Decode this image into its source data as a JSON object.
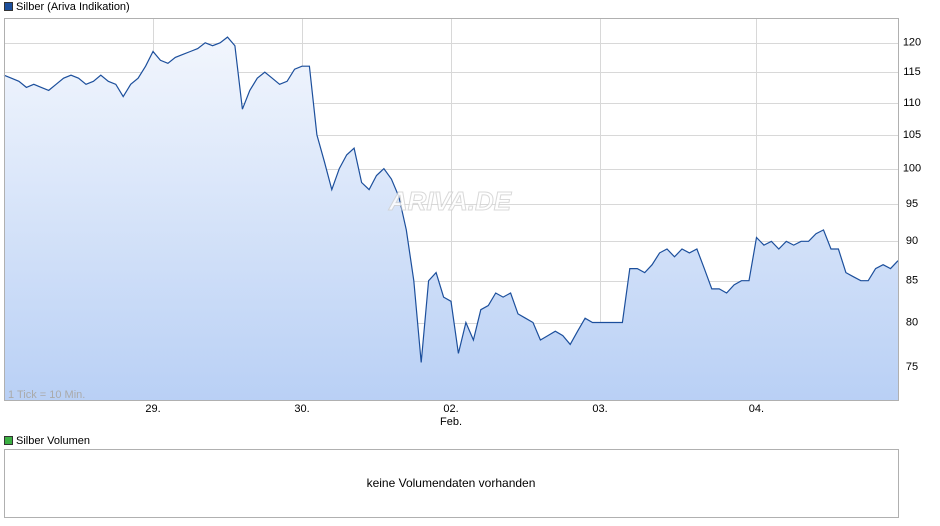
{
  "chart_data": {
    "type": "line",
    "log_scale": true,
    "grid": true,
    "annotation": "1 Tick = 10 Min.",
    "watermark": "ARIVA.DE",
    "categories": [
      null,
      null,
      null,
      null,
      null,
      null,
      null,
      null,
      null,
      null,
      null,
      null,
      null,
      null,
      null,
      null,
      null,
      null,
      null,
      null,
      "29.",
      null,
      null,
      null,
      null,
      null,
      null,
      null,
      null,
      null,
      null,
      null,
      null,
      null,
      null,
      null,
      null,
      null,
      null,
      null,
      "30.",
      null,
      null,
      null,
      null,
      null,
      null,
      null,
      null,
      null,
      null,
      null,
      null,
      null,
      null,
      null,
      null,
      null,
      null,
      null,
      "02.",
      null,
      null,
      null,
      null,
      null,
      null,
      null,
      null,
      null,
      null,
      null,
      null,
      null,
      null,
      null,
      null,
      null,
      null,
      null,
      "03.",
      null,
      null,
      null,
      null,
      null,
      null,
      null,
      null,
      null,
      null,
      null,
      null,
      null,
      null,
      null,
      null,
      null,
      null,
      null,
      null,
      "04.",
      null,
      null,
      null,
      null,
      null,
      null,
      null,
      null,
      null,
      null,
      null,
      null,
      null,
      null,
      null,
      null,
      null,
      null,
      null
    ],
    "x_month_label": "Feb.",
    "series": [
      {
        "name": "Silber (Ariva Indikation)",
        "color": "#1c4f9c",
        "values": [
          114.5,
          114,
          113.5,
          112.5,
          113,
          112.5,
          112,
          113,
          114,
          114.5,
          114,
          113,
          113.5,
          114.5,
          113.5,
          113,
          111,
          113,
          114,
          116,
          118.5,
          117,
          116.5,
          117.5,
          118,
          118.5,
          119,
          120,
          119.5,
          120,
          121,
          119.5,
          109,
          112,
          114,
          115,
          114,
          113,
          113.5,
          115.5,
          116,
          116,
          105,
          101,
          97,
          100,
          102,
          103,
          98,
          97,
          99,
          100,
          98.5,
          96,
          91.5,
          85,
          75.5,
          85,
          86,
          83,
          82.5,
          76.5,
          80,
          78,
          81.5,
          82,
          83.5,
          83,
          83.5,
          81,
          80.5,
          80,
          78,
          78.5,
          79,
          78.5,
          77.5,
          79,
          80.5,
          80,
          80,
          80,
          80,
          80,
          86.5,
          86.5,
          86,
          87,
          88.5,
          89,
          88,
          89,
          88.5,
          89,
          86.5,
          84,
          84,
          83.5,
          84.5,
          85,
          85,
          90.5,
          89.5,
          90,
          89,
          90,
          89.5,
          90,
          90,
          91,
          91.5,
          89,
          89,
          86,
          85.5,
          85,
          85,
          86.5,
          87,
          86.5,
          87.5
        ]
      }
    ],
    "ylim": [
      71.5,
      124.4
    ],
    "yticks": [
      75,
      80,
      85,
      90,
      95,
      100,
      105,
      110,
      115,
      120
    ]
  },
  "volume_panel": {
    "legend": "Silber Volumen",
    "color": "#3cb043",
    "message": "keine Volumendaten vorhanden"
  }
}
